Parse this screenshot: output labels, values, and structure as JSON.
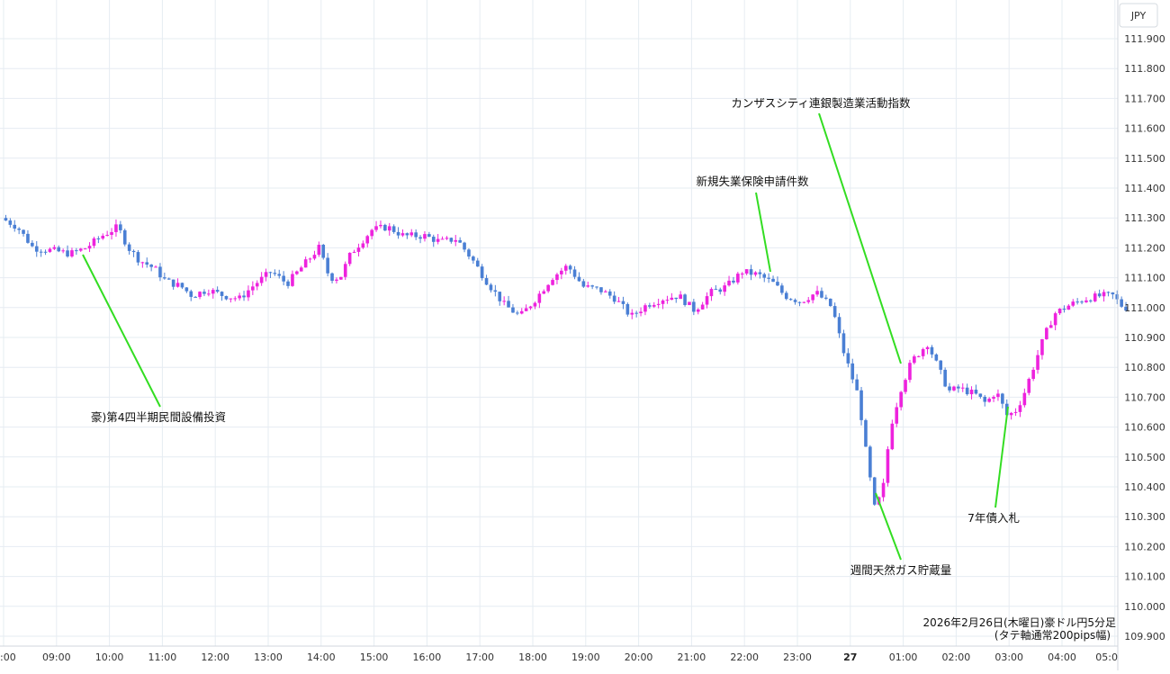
{
  "chart_data": {
    "type": "candlestick",
    "currency_label": "JPY",
    "caption": {
      "line1": "2026年2月26日(木曜日)豪ドル円5分足",
      "line2": "(タテ軸通常200pips幅)"
    },
    "y_ticks": [
      "111.900",
      "111.800",
      "111.700",
      "111.600",
      "111.500",
      "111.400",
      "111.300",
      "111.200",
      "111.100",
      "111.000",
      "110.900",
      "110.800",
      "110.700",
      "110.600",
      "110.500",
      "110.400",
      "110.300",
      "110.200",
      "110.100",
      "110.000",
      "109.900"
    ],
    "ylim": [
      109.87,
      111.97
    ],
    "x_ticks": [
      {
        "label": ":00",
        "hour": 8,
        "bold": false
      },
      {
        "label": "09:00",
        "hour": 9,
        "bold": false
      },
      {
        "label": "10:00",
        "hour": 10,
        "bold": false
      },
      {
        "label": "11:00",
        "hour": 11,
        "bold": false
      },
      {
        "label": "12:00",
        "hour": 12,
        "bold": false
      },
      {
        "label": "13:00",
        "hour": 13,
        "bold": false
      },
      {
        "label": "14:00",
        "hour": 14,
        "bold": false
      },
      {
        "label": "15:00",
        "hour": 15,
        "bold": false
      },
      {
        "label": "16:00",
        "hour": 16,
        "bold": false
      },
      {
        "label": "17:00",
        "hour": 17,
        "bold": false
      },
      {
        "label": "18:00",
        "hour": 18,
        "bold": false
      },
      {
        "label": "19:00",
        "hour": 19,
        "bold": false
      },
      {
        "label": "20:00",
        "hour": 20,
        "bold": false
      },
      {
        "label": "21:00",
        "hour": 21,
        "bold": false
      },
      {
        "label": "22:00",
        "hour": 22,
        "bold": false
      },
      {
        "label": "23:00",
        "hour": 23,
        "bold": false
      },
      {
        "label": "27",
        "hour": 24,
        "bold": true
      },
      {
        "label": "01:00",
        "hour": 25,
        "bold": false
      },
      {
        "label": "02:00",
        "hour": 26,
        "bold": false
      },
      {
        "label": "03:00",
        "hour": 27,
        "bold": false
      },
      {
        "label": "04:00",
        "hour": 28,
        "bold": false
      },
      {
        "label": "05:0",
        "hour": 29,
        "bold": false
      }
    ],
    "colors": {
      "up": "#ee22dd",
      "down": "#4a7fd4",
      "annotation_line": "#33dd22",
      "grid": "#e6ecf2"
    },
    "close_path": [
      [
        8.0,
        111.3
      ],
      [
        8.3,
        111.27
      ],
      [
        8.6,
        111.2
      ],
      [
        9.0,
        111.19
      ],
      [
        9.3,
        111.18
      ],
      [
        9.6,
        111.2
      ],
      [
        9.9,
        111.24
      ],
      [
        10.2,
        111.27
      ],
      [
        10.4,
        111.2
      ],
      [
        10.6,
        111.16
      ],
      [
        10.9,
        111.13
      ],
      [
        11.1,
        111.09
      ],
      [
        11.4,
        111.07
      ],
      [
        11.6,
        111.04
      ],
      [
        11.9,
        111.06
      ],
      [
        12.2,
        111.04
      ],
      [
        12.5,
        111.03
      ],
      [
        12.8,
        111.08
      ],
      [
        13.1,
        111.12
      ],
      [
        13.4,
        111.08
      ],
      [
        13.7,
        111.14
      ],
      [
        14.0,
        111.2
      ],
      [
        14.2,
        111.1
      ],
      [
        14.4,
        111.1
      ],
      [
        14.6,
        111.18
      ],
      [
        14.8,
        111.22
      ],
      [
        15.0,
        111.26
      ],
      [
        15.3,
        111.27
      ],
      [
        15.6,
        111.24
      ],
      [
        16.0,
        111.24
      ],
      [
        16.3,
        111.22
      ],
      [
        16.6,
        111.23
      ],
      [
        16.9,
        111.16
      ],
      [
        17.2,
        111.08
      ],
      [
        17.5,
        111.01
      ],
      [
        17.8,
        110.97
      ],
      [
        18.1,
        111.03
      ],
      [
        18.4,
        111.1
      ],
      [
        18.7,
        111.14
      ],
      [
        19.0,
        111.07
      ],
      [
        19.3,
        111.06
      ],
      [
        19.6,
        111.03
      ],
      [
        19.9,
        110.97
      ],
      [
        20.2,
        111.01
      ],
      [
        20.5,
        111.03
      ],
      [
        20.8,
        111.04
      ],
      [
        21.1,
        110.99
      ],
      [
        21.4,
        111.05
      ],
      [
        21.7,
        111.07
      ],
      [
        22.0,
        111.12
      ],
      [
        22.3,
        111.11
      ],
      [
        22.6,
        111.08
      ],
      [
        22.8,
        111.04
      ],
      [
        23.1,
        111.02
      ],
      [
        23.4,
        111.05
      ],
      [
        23.7,
        111.0
      ],
      [
        23.9,
        110.86
      ],
      [
        24.2,
        110.7
      ],
      [
        24.35,
        110.5
      ],
      [
        24.5,
        110.33
      ],
      [
        24.65,
        110.38
      ],
      [
        24.8,
        110.6
      ],
      [
        25.0,
        110.73
      ],
      [
        25.2,
        110.82
      ],
      [
        25.5,
        110.88
      ],
      [
        25.7,
        110.8
      ],
      [
        25.9,
        110.72
      ],
      [
        26.1,
        110.73
      ],
      [
        26.4,
        110.71
      ],
      [
        26.6,
        110.68
      ],
      [
        26.8,
        110.72
      ],
      [
        27.0,
        110.64
      ],
      [
        27.15,
        110.65
      ],
      [
        27.3,
        110.7
      ],
      [
        27.5,
        110.8
      ],
      [
        27.7,
        110.9
      ],
      [
        27.9,
        110.98
      ],
      [
        28.2,
        111.01
      ],
      [
        28.5,
        111.03
      ],
      [
        28.8,
        111.04
      ],
      [
        29.0,
        111.04
      ],
      [
        29.2,
        111.0
      ]
    ],
    "annotations": [
      {
        "label": "豪)第4四半期民間設備投資"
      },
      {
        "label": "新規失業保険申請件数"
      },
      {
        "label": "カンザスシティ連銀製造業活動指数"
      },
      {
        "label": "週間天然ガス貯蔵量"
      },
      {
        "label": "7年債入札"
      }
    ]
  }
}
